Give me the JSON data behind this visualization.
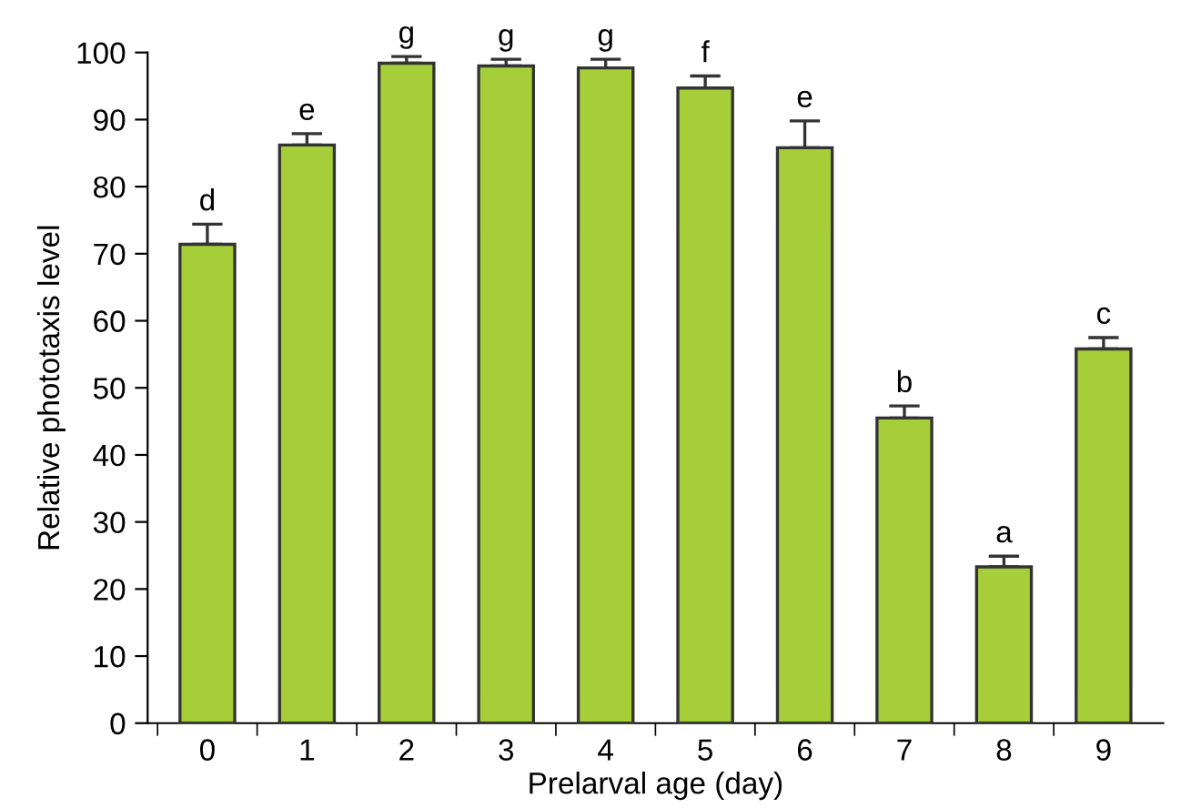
{
  "chart_data": {
    "type": "bar",
    "xlabel": "Prelarval age (day)",
    "ylabel": "Relative phototaxis level",
    "categories": [
      "0",
      "1",
      "2",
      "3",
      "4",
      "5",
      "6",
      "7",
      "8",
      "9"
    ],
    "values": [
      71.4,
      86.2,
      98.4,
      98.0,
      97.7,
      94.7,
      85.8,
      45.5,
      23.3,
      55.8
    ],
    "errors": [
      [
        71.4,
        74.4
      ],
      [
        86.2,
        87.9
      ],
      [
        98.4,
        99.4
      ],
      [
        98.0,
        99.0
      ],
      [
        97.7,
        99.0
      ],
      [
        94.7,
        96.5
      ],
      [
        85.8,
        89.8
      ],
      [
        45.5,
        47.3
      ],
      [
        23.3,
        24.9
      ],
      [
        55.8,
        57.5
      ]
    ],
    "color": "#a6ce39",
    "ylim": [
      0,
      100
    ],
    "yticks": [
      0,
      10,
      20,
      30,
      40,
      50,
      60,
      70,
      80,
      90,
      100
    ],
    "grid": false,
    "annotations": [
      {
        "text": "d",
        "x": "0",
        "y": 74.4
      },
      {
        "text": "e",
        "x": "1",
        "y": 87.9
      },
      {
        "text": "g",
        "x": "2",
        "y": 99.4
      },
      {
        "text": "g",
        "x": "3",
        "y": 99.0
      },
      {
        "text": "g",
        "x": "4",
        "y": 99.0
      },
      {
        "text": "f",
        "x": "5",
        "y": 96.5
      },
      {
        "text": "e",
        "x": "6",
        "y": 89.8
      },
      {
        "text": "b",
        "x": "7",
        "y": 47.3
      },
      {
        "text": "a",
        "x": "8",
        "y": 24.9
      },
      {
        "text": "c",
        "x": "9",
        "y": 57.5
      }
    ]
  }
}
